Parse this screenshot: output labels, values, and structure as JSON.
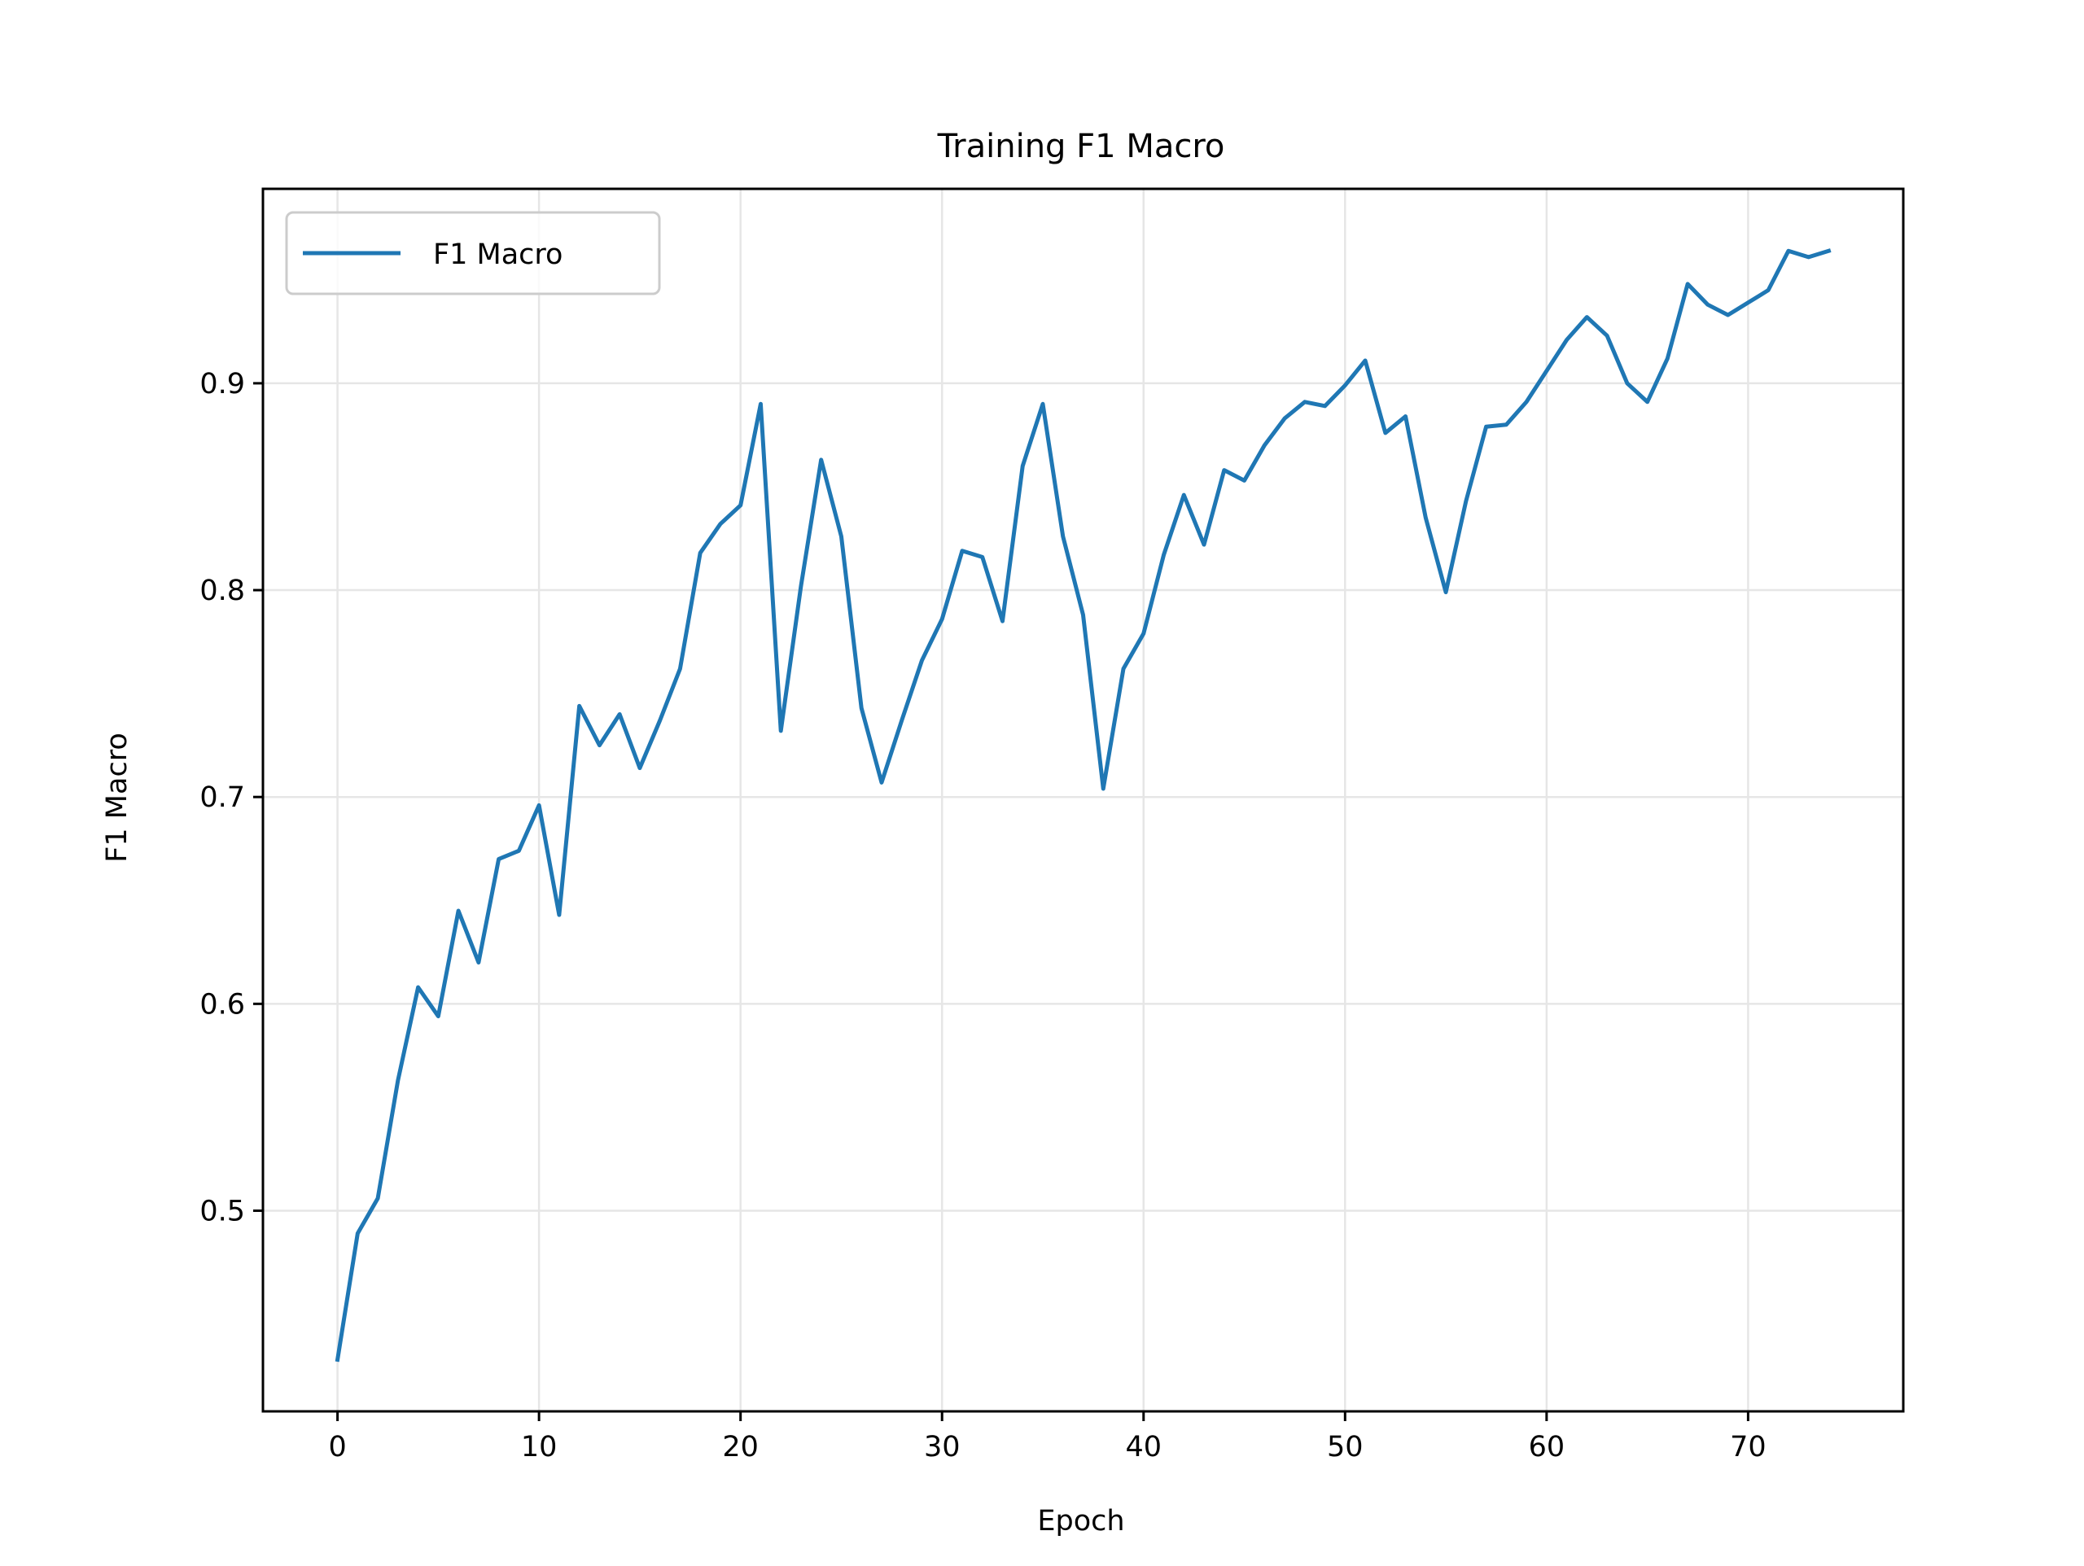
{
  "chart_data": {
    "type": "line",
    "title": "Training F1 Macro",
    "xlabel": "Epoch",
    "ylabel": "F1 Macro",
    "xlim": [
      -3.7,
      77.7
    ],
    "ylim": [
      0.403,
      0.994
    ],
    "xticks": [
      0,
      10,
      20,
      30,
      40,
      50,
      60,
      70
    ],
    "xtick_labels": [
      "0",
      "10",
      "20",
      "30",
      "40",
      "50",
      "60",
      "70"
    ],
    "yticks": [
      0.5,
      0.6,
      0.7,
      0.8,
      0.9
    ],
    "ytick_labels": [
      "0.5",
      "0.6",
      "0.7",
      "0.8",
      "0.9"
    ],
    "grid": true,
    "legend": {
      "placement": "upper-left",
      "entries": [
        "F1 Macro"
      ]
    },
    "series": [
      {
        "name": "F1 Macro",
        "color": "#1f77b4",
        "x": [
          0,
          1,
          2,
          3,
          4,
          5,
          6,
          7,
          8,
          9,
          10,
          11,
          12,
          13,
          14,
          15,
          16,
          17,
          18,
          19,
          20,
          21,
          22,
          23,
          24,
          25,
          26,
          27,
          28,
          29,
          30,
          31,
          32,
          33,
          34,
          35,
          36,
          37,
          38,
          39,
          40,
          41,
          42,
          43,
          44,
          45,
          46,
          47,
          48,
          49,
          50,
          51,
          52,
          53,
          54,
          55,
          56,
          57,
          58,
          59,
          60,
          61,
          62,
          63,
          64,
          65,
          66,
          67,
          68,
          69,
          70,
          71,
          72,
          73,
          74
        ],
        "values": [
          0.428,
          0.489,
          0.506,
          0.563,
          0.608,
          0.594,
          0.645,
          0.62,
          0.67,
          0.674,
          0.696,
          0.643,
          0.744,
          0.725,
          0.74,
          0.714,
          0.737,
          0.762,
          0.818,
          0.832,
          0.841,
          0.89,
          0.732,
          0.802,
          0.863,
          0.826,
          0.743,
          0.707,
          0.737,
          0.766,
          0.786,
          0.819,
          0.816,
          0.785,
          0.86,
          0.89,
          0.826,
          0.788,
          0.704,
          0.762,
          0.779,
          0.817,
          0.846,
          0.822,
          0.858,
          0.853,
          0.87,
          0.883,
          0.891,
          0.889,
          0.899,
          0.911,
          0.876,
          0.884,
          0.835,
          0.799,
          0.843,
          0.879,
          0.88,
          0.891,
          0.906,
          0.921,
          0.932,
          0.923,
          0.9,
          0.891,
          0.912,
          0.948,
          0.938,
          0.933,
          0.939,
          0.945,
          0.964,
          0.961,
          0.964
        ]
      }
    ]
  }
}
